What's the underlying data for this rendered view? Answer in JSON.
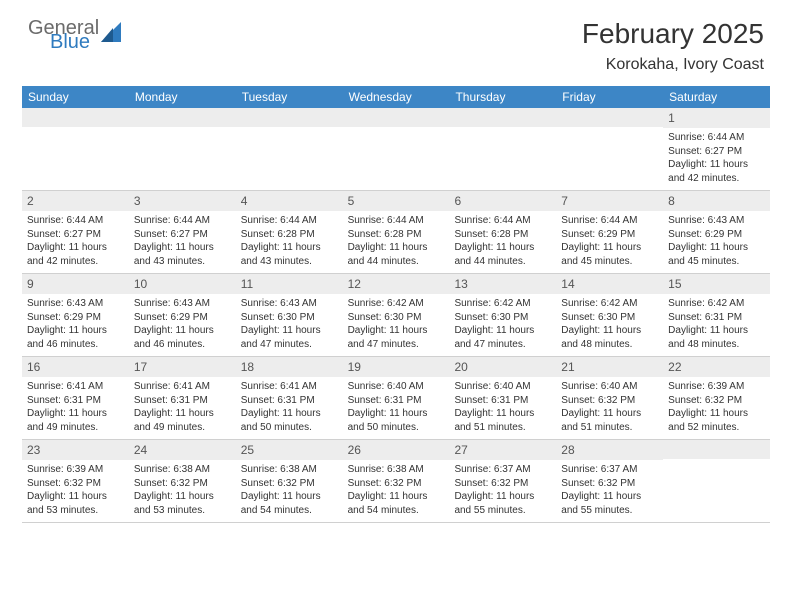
{
  "logo": {
    "general": "General",
    "blue": "Blue"
  },
  "title": "February 2025",
  "location": "Korokaha, Ivory Coast",
  "colors": {
    "header_bar": "#3d86c6",
    "daynum_bg": "#ededed",
    "text": "#333333",
    "logo_gray": "#6b6b6b",
    "logo_blue": "#2f7bbf"
  },
  "weekdays": [
    "Sunday",
    "Monday",
    "Tuesday",
    "Wednesday",
    "Thursday",
    "Friday",
    "Saturday"
  ],
  "weeks": [
    [
      null,
      null,
      null,
      null,
      null,
      null,
      {
        "n": "1",
        "sr": "Sunrise: 6:44 AM",
        "ss": "Sunset: 6:27 PM",
        "dl": "Daylight: 11 hours and 42 minutes."
      }
    ],
    [
      {
        "n": "2",
        "sr": "Sunrise: 6:44 AM",
        "ss": "Sunset: 6:27 PM",
        "dl": "Daylight: 11 hours and 42 minutes."
      },
      {
        "n": "3",
        "sr": "Sunrise: 6:44 AM",
        "ss": "Sunset: 6:27 PM",
        "dl": "Daylight: 11 hours and 43 minutes."
      },
      {
        "n": "4",
        "sr": "Sunrise: 6:44 AM",
        "ss": "Sunset: 6:28 PM",
        "dl": "Daylight: 11 hours and 43 minutes."
      },
      {
        "n": "5",
        "sr": "Sunrise: 6:44 AM",
        "ss": "Sunset: 6:28 PM",
        "dl": "Daylight: 11 hours and 44 minutes."
      },
      {
        "n": "6",
        "sr": "Sunrise: 6:44 AM",
        "ss": "Sunset: 6:28 PM",
        "dl": "Daylight: 11 hours and 44 minutes."
      },
      {
        "n": "7",
        "sr": "Sunrise: 6:44 AM",
        "ss": "Sunset: 6:29 PM",
        "dl": "Daylight: 11 hours and 45 minutes."
      },
      {
        "n": "8",
        "sr": "Sunrise: 6:43 AM",
        "ss": "Sunset: 6:29 PM",
        "dl": "Daylight: 11 hours and 45 minutes."
      }
    ],
    [
      {
        "n": "9",
        "sr": "Sunrise: 6:43 AM",
        "ss": "Sunset: 6:29 PM",
        "dl": "Daylight: 11 hours and 46 minutes."
      },
      {
        "n": "10",
        "sr": "Sunrise: 6:43 AM",
        "ss": "Sunset: 6:29 PM",
        "dl": "Daylight: 11 hours and 46 minutes."
      },
      {
        "n": "11",
        "sr": "Sunrise: 6:43 AM",
        "ss": "Sunset: 6:30 PM",
        "dl": "Daylight: 11 hours and 47 minutes."
      },
      {
        "n": "12",
        "sr": "Sunrise: 6:42 AM",
        "ss": "Sunset: 6:30 PM",
        "dl": "Daylight: 11 hours and 47 minutes."
      },
      {
        "n": "13",
        "sr": "Sunrise: 6:42 AM",
        "ss": "Sunset: 6:30 PM",
        "dl": "Daylight: 11 hours and 47 minutes."
      },
      {
        "n": "14",
        "sr": "Sunrise: 6:42 AM",
        "ss": "Sunset: 6:30 PM",
        "dl": "Daylight: 11 hours and 48 minutes."
      },
      {
        "n": "15",
        "sr": "Sunrise: 6:42 AM",
        "ss": "Sunset: 6:31 PM",
        "dl": "Daylight: 11 hours and 48 minutes."
      }
    ],
    [
      {
        "n": "16",
        "sr": "Sunrise: 6:41 AM",
        "ss": "Sunset: 6:31 PM",
        "dl": "Daylight: 11 hours and 49 minutes."
      },
      {
        "n": "17",
        "sr": "Sunrise: 6:41 AM",
        "ss": "Sunset: 6:31 PM",
        "dl": "Daylight: 11 hours and 49 minutes."
      },
      {
        "n": "18",
        "sr": "Sunrise: 6:41 AM",
        "ss": "Sunset: 6:31 PM",
        "dl": "Daylight: 11 hours and 50 minutes."
      },
      {
        "n": "19",
        "sr": "Sunrise: 6:40 AM",
        "ss": "Sunset: 6:31 PM",
        "dl": "Daylight: 11 hours and 50 minutes."
      },
      {
        "n": "20",
        "sr": "Sunrise: 6:40 AM",
        "ss": "Sunset: 6:31 PM",
        "dl": "Daylight: 11 hours and 51 minutes."
      },
      {
        "n": "21",
        "sr": "Sunrise: 6:40 AM",
        "ss": "Sunset: 6:32 PM",
        "dl": "Daylight: 11 hours and 51 minutes."
      },
      {
        "n": "22",
        "sr": "Sunrise: 6:39 AM",
        "ss": "Sunset: 6:32 PM",
        "dl": "Daylight: 11 hours and 52 minutes."
      }
    ],
    [
      {
        "n": "23",
        "sr": "Sunrise: 6:39 AM",
        "ss": "Sunset: 6:32 PM",
        "dl": "Daylight: 11 hours and 53 minutes."
      },
      {
        "n": "24",
        "sr": "Sunrise: 6:38 AM",
        "ss": "Sunset: 6:32 PM",
        "dl": "Daylight: 11 hours and 53 minutes."
      },
      {
        "n": "25",
        "sr": "Sunrise: 6:38 AM",
        "ss": "Sunset: 6:32 PM",
        "dl": "Daylight: 11 hours and 54 minutes."
      },
      {
        "n": "26",
        "sr": "Sunrise: 6:38 AM",
        "ss": "Sunset: 6:32 PM",
        "dl": "Daylight: 11 hours and 54 minutes."
      },
      {
        "n": "27",
        "sr": "Sunrise: 6:37 AM",
        "ss": "Sunset: 6:32 PM",
        "dl": "Daylight: 11 hours and 55 minutes."
      },
      {
        "n": "28",
        "sr": "Sunrise: 6:37 AM",
        "ss": "Sunset: 6:32 PM",
        "dl": "Daylight: 11 hours and 55 minutes."
      },
      null
    ]
  ]
}
